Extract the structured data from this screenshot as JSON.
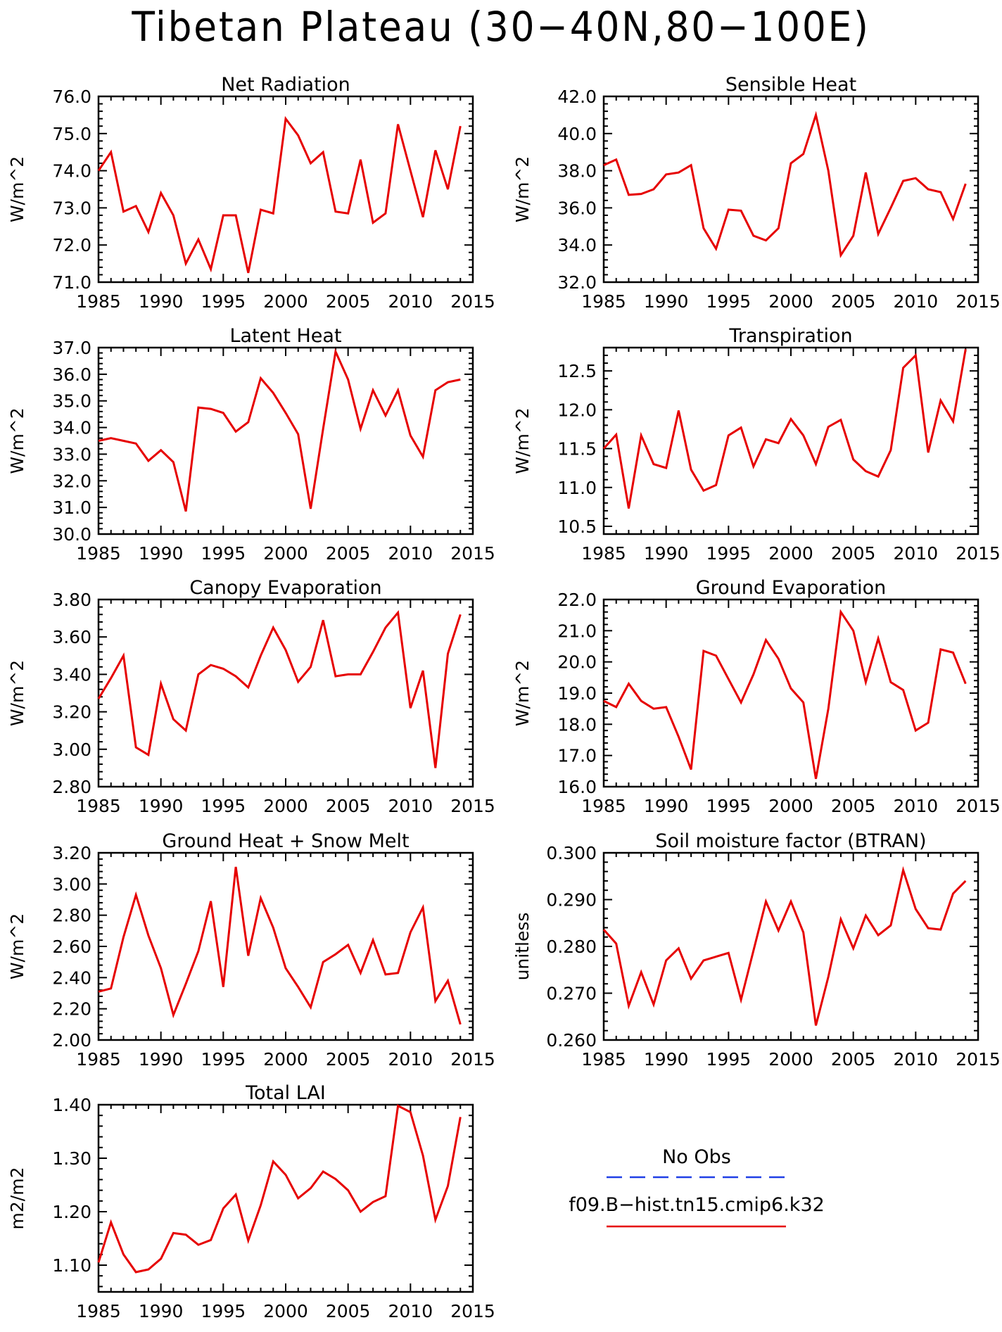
{
  "figure_title": "Tibetan Plateau (30−40N,80−100E)",
  "colors": {
    "model_line": "#e60000",
    "obs_line": "#1f3fe6",
    "axis": "#000000"
  },
  "legend": {
    "obs_label": "No Obs",
    "model_label": "f09.B−hist.tn15.cmip6.k32"
  },
  "chart_data": [
    {
      "type": "line",
      "title": "Net Radiation",
      "xlabel": "",
      "ylabel": "W/m^2",
      "xlim": [
        1985,
        2015
      ],
      "ylim": [
        71.0,
        76.0
      ],
      "x_ticks": [
        "1985",
        "1990",
        "1995",
        "2000",
        "2005",
        "2010",
        "2015"
      ],
      "y_ticks": [
        "71.0",
        "72.0",
        "73.0",
        "74.0",
        "75.0",
        "76.0"
      ],
      "series": [
        {
          "x": [
            1985,
            1986,
            1987,
            1988,
            1989,
            1990,
            1991,
            1992,
            1993,
            1994,
            1995,
            1996,
            1997,
            1998,
            1999,
            2000,
            2001,
            2002,
            2003,
            2004,
            2005,
            2006,
            2007,
            2008,
            2009,
            2010,
            2011,
            2012,
            2013,
            2014
          ],
          "y": [
            74.0,
            74.5,
            72.9,
            73.05,
            72.35,
            73.4,
            72.8,
            71.5,
            72.15,
            71.35,
            72.8,
            72.8,
            71.25,
            72.95,
            72.85,
            75.4,
            74.95,
            74.2,
            74.5,
            72.9,
            72.85,
            74.3,
            72.6,
            72.85,
            75.25,
            74.0,
            72.75,
            74.55,
            73.5,
            75.2
          ]
        }
      ]
    },
    {
      "type": "line",
      "title": "Sensible Heat",
      "xlabel": "",
      "ylabel": "W/m^2",
      "xlim": [
        1985,
        2015
      ],
      "ylim": [
        32.0,
        42.0
      ],
      "x_ticks": [
        "1985",
        "1990",
        "1995",
        "2000",
        "2005",
        "2010",
        "2015"
      ],
      "y_ticks": [
        "32.0",
        "34.0",
        "36.0",
        "38.0",
        "40.0",
        "42.0"
      ],
      "series": [
        {
          "x": [
            1985,
            1986,
            1987,
            1988,
            1989,
            1990,
            1991,
            1992,
            1993,
            1994,
            1995,
            1996,
            1997,
            1998,
            1999,
            2000,
            2001,
            2002,
            2003,
            2004,
            2005,
            2006,
            2007,
            2008,
            2009,
            2010,
            2011,
            2012,
            2013,
            2014
          ],
          "y": [
            38.3,
            38.6,
            36.7,
            36.75,
            37.0,
            37.8,
            37.9,
            38.3,
            34.9,
            33.8,
            35.9,
            35.85,
            34.5,
            34.25,
            34.9,
            38.4,
            38.9,
            41.0,
            38.0,
            33.45,
            34.5,
            37.9,
            34.6,
            36.0,
            37.45,
            37.6,
            37.0,
            36.85,
            35.4,
            37.3
          ]
        }
      ]
    },
    {
      "type": "line",
      "title": "Latent Heat",
      "xlabel": "",
      "ylabel": "W/m^2",
      "xlim": [
        1985,
        2015
      ],
      "ylim": [
        30.0,
        37.0
      ],
      "x_ticks": [
        "1985",
        "1990",
        "1995",
        "2000",
        "2005",
        "2010",
        "2015"
      ],
      "y_ticks": [
        "30.0",
        "31.0",
        "32.0",
        "33.0",
        "34.0",
        "35.0",
        "36.0",
        "37.0"
      ],
      "series": [
        {
          "x": [
            1985,
            1986,
            1987,
            1988,
            1989,
            1990,
            1991,
            1992,
            1993,
            1994,
            1995,
            1996,
            1997,
            1998,
            1999,
            2000,
            2001,
            2002,
            2003,
            2004,
            2005,
            2006,
            2007,
            2008,
            2009,
            2010,
            2011,
            2012,
            2013,
            2014
          ],
          "y": [
            33.5,
            33.6,
            33.5,
            33.4,
            32.75,
            33.15,
            32.7,
            30.85,
            34.75,
            34.7,
            34.55,
            33.85,
            34.2,
            35.85,
            35.3,
            34.55,
            33.75,
            30.95,
            33.95,
            36.85,
            35.8,
            33.95,
            35.4,
            34.45,
            35.4,
            33.7,
            32.9,
            35.4,
            35.7,
            35.8
          ]
        }
      ]
    },
    {
      "type": "line",
      "title": "Transpiration",
      "xlabel": "",
      "ylabel": "W/m^2",
      "xlim": [
        1985,
        2015
      ],
      "ylim": [
        10.4,
        12.8
      ],
      "x_ticks": [
        "1985",
        "1990",
        "1995",
        "2000",
        "2005",
        "2010",
        "2015"
      ],
      "y_ticks": [
        "10.5",
        "11.0",
        "11.5",
        "12.0",
        "12.5"
      ],
      "series": [
        {
          "x": [
            1985,
            1986,
            1987,
            1988,
            1989,
            1990,
            1991,
            1992,
            1993,
            1994,
            1995,
            1996,
            1997,
            1998,
            1999,
            2000,
            2001,
            2002,
            2003,
            2004,
            2005,
            2006,
            2007,
            2008,
            2009,
            2010,
            2011,
            2012,
            2013,
            2014
          ],
          "y": [
            11.5,
            11.68,
            10.73,
            11.67,
            11.3,
            11.25,
            11.99,
            11.23,
            10.96,
            11.03,
            11.67,
            11.77,
            11.27,
            11.62,
            11.57,
            11.88,
            11.67,
            11.3,
            11.78,
            11.87,
            11.36,
            11.21,
            11.14,
            11.48,
            12.54,
            12.7,
            11.45,
            12.12,
            11.85,
            12.78
          ]
        }
      ]
    },
    {
      "type": "line",
      "title": "Canopy Evaporation",
      "xlabel": "",
      "ylabel": "W/m^2",
      "xlim": [
        1985,
        2015
      ],
      "ylim": [
        2.8,
        3.8
      ],
      "x_ticks": [
        "1985",
        "1990",
        "1995",
        "2000",
        "2005",
        "2010",
        "2015"
      ],
      "y_ticks": [
        "2.80",
        "3.00",
        "3.20",
        "3.40",
        "3.60",
        "3.80"
      ],
      "series": [
        {
          "x": [
            1985,
            1986,
            1987,
            1988,
            1989,
            1990,
            1991,
            1992,
            1993,
            1994,
            1995,
            1996,
            1997,
            1998,
            1999,
            2000,
            2001,
            2002,
            2003,
            2004,
            2005,
            2006,
            2007,
            2008,
            2009,
            2010,
            2011,
            2012,
            2013,
            2014
          ],
          "y": [
            3.27,
            3.38,
            3.5,
            3.01,
            2.97,
            3.35,
            3.16,
            3.1,
            3.4,
            3.45,
            3.43,
            3.39,
            3.33,
            3.5,
            3.65,
            3.53,
            3.36,
            3.44,
            3.69,
            3.39,
            3.4,
            3.4,
            3.52,
            3.65,
            3.73,
            3.22,
            3.42,
            2.9,
            3.51,
            3.72
          ]
        }
      ]
    },
    {
      "type": "line",
      "title": "Ground Evaporation",
      "xlabel": "",
      "ylabel": "W/m^2",
      "xlim": [
        1985,
        2015
      ],
      "ylim": [
        16.0,
        22.0
      ],
      "x_ticks": [
        "1985",
        "1990",
        "1995",
        "2000",
        "2005",
        "2010",
        "2015"
      ],
      "y_ticks": [
        "16.0",
        "17.0",
        "18.0",
        "19.0",
        "20.0",
        "21.0",
        "22.0"
      ],
      "series": [
        {
          "x": [
            1985,
            1986,
            1987,
            1988,
            1989,
            1990,
            1991,
            1992,
            1993,
            1994,
            1995,
            1996,
            1997,
            1998,
            1999,
            2000,
            2001,
            2002,
            2003,
            2004,
            2005,
            2006,
            2007,
            2008,
            2009,
            2010,
            2011,
            2012,
            2013,
            2014
          ],
          "y": [
            18.75,
            18.55,
            19.3,
            18.75,
            18.5,
            18.55,
            17.6,
            16.55,
            20.35,
            20.2,
            19.45,
            18.7,
            19.6,
            20.7,
            20.1,
            19.15,
            18.7,
            16.25,
            18.5,
            21.6,
            21.0,
            19.35,
            20.75,
            19.35,
            19.1,
            17.8,
            18.05,
            20.4,
            20.3,
            19.3
          ]
        }
      ]
    },
    {
      "type": "line",
      "title": "Ground Heat + Snow Melt",
      "xlabel": "",
      "ylabel": "W/m^2",
      "xlim": [
        1985,
        2015
      ],
      "ylim": [
        2.0,
        3.2
      ],
      "x_ticks": [
        "1985",
        "1990",
        "1995",
        "2000",
        "2005",
        "2010",
        "2015"
      ],
      "y_ticks": [
        "2.00",
        "2.20",
        "2.40",
        "2.60",
        "2.80",
        "3.00",
        "3.20"
      ],
      "series": [
        {
          "x": [
            1985,
            1986,
            1987,
            1988,
            1989,
            1990,
            1991,
            1992,
            1993,
            1994,
            1995,
            1996,
            1997,
            1998,
            1999,
            2000,
            2001,
            2002,
            2003,
            2004,
            2005,
            2006,
            2007,
            2008,
            2009,
            2010,
            2011,
            2012,
            2013,
            2014
          ],
          "y": [
            2.31,
            2.33,
            2.66,
            2.93,
            2.67,
            2.46,
            2.16,
            2.36,
            2.57,
            2.89,
            2.34,
            3.11,
            2.54,
            2.91,
            2.72,
            2.46,
            2.34,
            2.21,
            2.5,
            2.55,
            2.61,
            2.43,
            2.64,
            2.42,
            2.43,
            2.69,
            2.85,
            2.25,
            2.38,
            2.1
          ]
        }
      ]
    },
    {
      "type": "line",
      "title": "Soil moisture factor (BTRAN)",
      "xlabel": "",
      "ylabel": "unitless",
      "xlim": [
        1985,
        2015
      ],
      "ylim": [
        0.26,
        0.3
      ],
      "x_ticks": [
        "1985",
        "1990",
        "1995",
        "2000",
        "2005",
        "2010",
        "2015"
      ],
      "y_ticks": [
        "0.260",
        "0.270",
        "0.280",
        "0.290",
        "0.300"
      ],
      "series": [
        {
          "x": [
            1985,
            1986,
            1987,
            1988,
            1989,
            1990,
            1991,
            1992,
            1993,
            1994,
            1995,
            1996,
            1997,
            1998,
            1999,
            2000,
            2001,
            2002,
            2003,
            2004,
            2005,
            2006,
            2007,
            2008,
            2009,
            2010,
            2011,
            2012,
            2013,
            2014
          ],
          "y": [
            0.2836,
            0.2806,
            0.2673,
            0.2745,
            0.2676,
            0.277,
            0.2796,
            0.2731,
            0.277,
            0.2778,
            0.2786,
            0.2686,
            0.2791,
            0.2896,
            0.2834,
            0.2896,
            0.283,
            0.2631,
            0.2735,
            0.2858,
            0.2796,
            0.2866,
            0.2824,
            0.2845,
            0.2963,
            0.288,
            0.2839,
            0.2836,
            0.2913,
            0.294
          ]
        }
      ]
    },
    {
      "type": "line",
      "title": "Total LAI",
      "xlabel": "",
      "ylabel": "m2/m2",
      "xlim": [
        1985,
        2015
      ],
      "ylim": [
        1.05,
        1.4
      ],
      "x_ticks": [
        "1985",
        "1990",
        "1995",
        "2000",
        "2005",
        "2010",
        "2015"
      ],
      "y_ticks": [
        "1.10",
        "1.20",
        "1.30",
        "1.40"
      ],
      "series": [
        {
          "x": [
            1985,
            1986,
            1987,
            1988,
            1989,
            1990,
            1991,
            1992,
            1993,
            1994,
            1995,
            1996,
            1997,
            1998,
            1999,
            2000,
            2001,
            2002,
            2003,
            2004,
            2005,
            2006,
            2007,
            2008,
            2009,
            2010,
            2011,
            2012,
            2013,
            2014
          ],
          "y": [
            1.105,
            1.18,
            1.12,
            1.087,
            1.092,
            1.112,
            1.16,
            1.157,
            1.138,
            1.147,
            1.206,
            1.232,
            1.146,
            1.212,
            1.294,
            1.269,
            1.225,
            1.244,
            1.275,
            1.261,
            1.24,
            1.2,
            1.218,
            1.229,
            1.398,
            1.386,
            1.305,
            1.185,
            1.248,
            1.377
          ]
        }
      ]
    }
  ]
}
